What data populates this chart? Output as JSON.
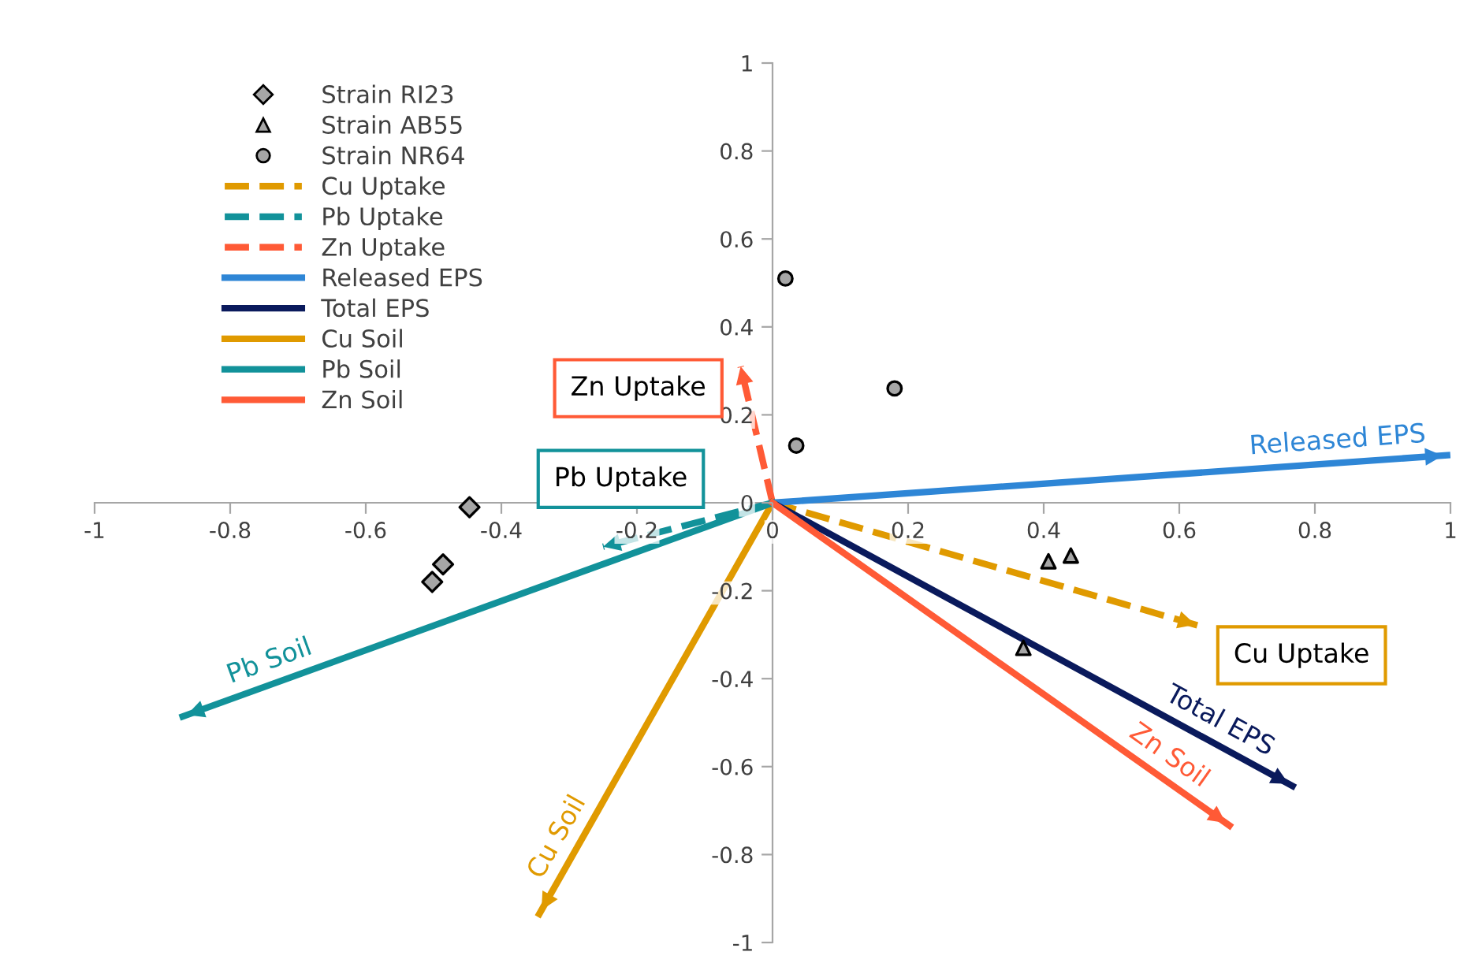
{
  "chart_data": {
    "type": "scatter",
    "series": [
      {
        "name": "Strain RI23",
        "marker": "diamond",
        "color": "#a6a6a6",
        "x": [
          -0.447,
          -0.486,
          -0.502
        ],
        "values": [
          -0.01,
          -0.14,
          -0.18
        ]
      },
      {
        "name": "Strain AB55",
        "marker": "triangle",
        "color": "#a6a6a6",
        "x": [
          0.407,
          0.44,
          0.37
        ],
        "values": [
          -0.133,
          -0.12,
          -0.33
        ]
      },
      {
        "name": "Strain NR64",
        "marker": "circle",
        "color": "#a6a6a6",
        "x": [
          0.019,
          0.035,
          0.18
        ],
        "values": [
          0.51,
          0.13,
          0.26
        ]
      },
      {
        "name": "Cu Uptake",
        "type": "line",
        "line_style": "dashed",
        "color": "#e09a00",
        "x": [
          0,
          0.63
        ],
        "values": [
          0,
          -0.28
        ]
      },
      {
        "name": "Pb Uptake",
        "type": "line",
        "line_style": "dashed",
        "color": "#12929a",
        "x": [
          0,
          -0.25
        ],
        "values": [
          0,
          -0.1
        ]
      },
      {
        "name": "Zn Uptake",
        "type": "line",
        "line_style": "dashed",
        "color": "#ff5a36",
        "x": [
          0,
          -0.047
        ],
        "values": [
          0,
          0.31
        ]
      },
      {
        "name": "Released EPS",
        "type": "line",
        "line_style": "solid",
        "color": "#2e86d6",
        "x": [
          0,
          0.995
        ],
        "values": [
          0,
          0.108
        ]
      },
      {
        "name": "Total EPS",
        "type": "line",
        "line_style": "solid",
        "color": "#0a1a5c",
        "x": [
          0,
          0.767
        ],
        "values": [
          0,
          -0.644
        ]
      },
      {
        "name": "Cu Soil",
        "type": "line",
        "line_style": "solid",
        "color": "#e09a00",
        "x": [
          0,
          -0.344
        ],
        "values": [
          0,
          -0.935
        ]
      },
      {
        "name": "Pb Soil",
        "type": "line",
        "line_style": "solid",
        "color": "#12929a",
        "x": [
          0,
          -0.87
        ],
        "values": [
          0,
          -0.486
        ]
      },
      {
        "name": "Zn Soil",
        "type": "line",
        "line_style": "solid",
        "color": "#ff5a36",
        "x": [
          0,
          0.674
        ],
        "values": [
          0,
          -0.734
        ]
      }
    ],
    "annotations": [
      "Cu Uptake",
      "Pb Uptake",
      "Zn Uptake",
      "Released EPS",
      "Total EPS",
      "Cu Soil",
      "Pb Soil",
      "Zn Soil"
    ],
    "xlim": [
      -1,
      1
    ],
    "ylim": [
      -1,
      1
    ],
    "xticks": [
      -1,
      -0.8,
      -0.6,
      -0.4,
      -0.2,
      0,
      0.2,
      0.4,
      0.6,
      0.8,
      1
    ],
    "yticks": [
      -1,
      -0.8,
      -0.6,
      -0.4,
      -0.2,
      0,
      0.2,
      0.4,
      0.6,
      0.8,
      1
    ],
    "grid": false,
    "legend": "top left"
  }
}
